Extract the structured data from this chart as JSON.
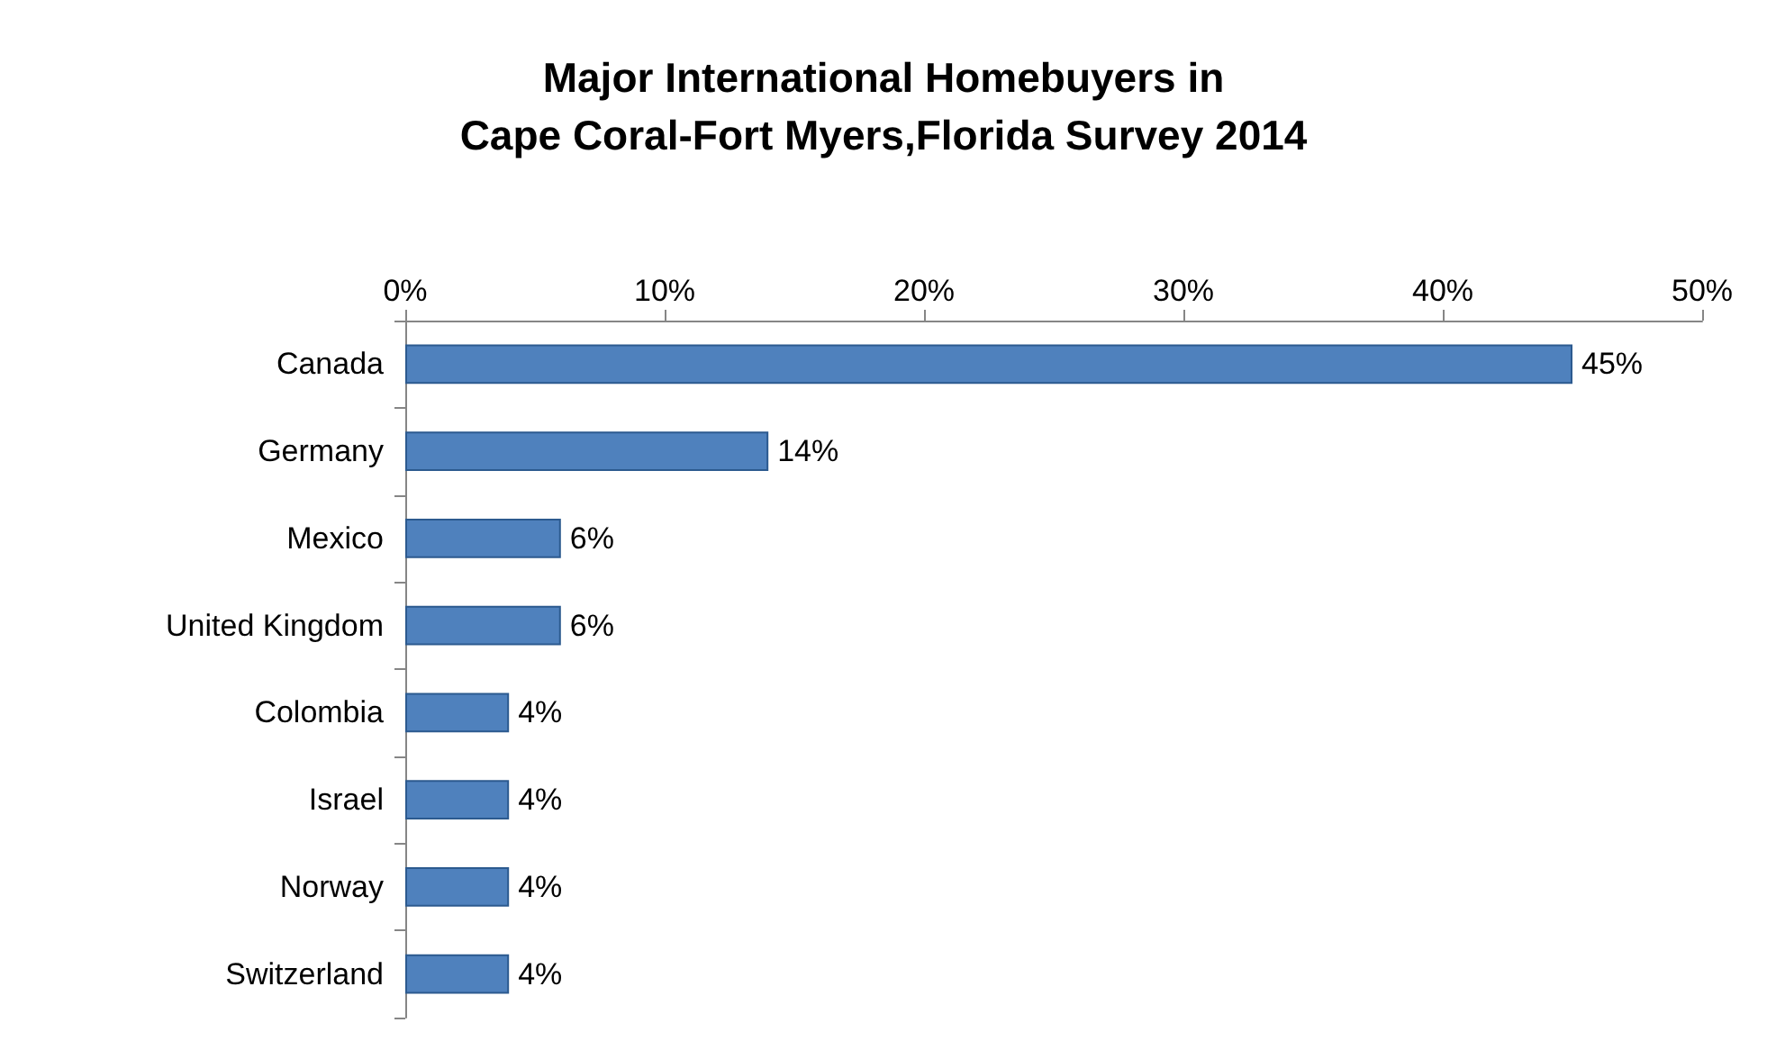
{
  "chart_data": {
    "type": "bar",
    "orientation": "horizontal",
    "title": "Major International Homebuyers in\nCape Coral-Fort Myers,Florida Survey 2014",
    "categories": [
      "Canada",
      "Germany",
      "Mexico",
      "United Kingdom",
      "Colombia",
      "Israel",
      "Norway",
      "Switzerland"
    ],
    "values": [
      45,
      14,
      6,
      6,
      4,
      4,
      4,
      4
    ],
    "value_labels": [
      "45%",
      "14%",
      "6%",
      "6%",
      "4%",
      "4%",
      "4%",
      "4%"
    ],
    "color": "#4f81bd",
    "xlim": [
      0,
      50
    ],
    "xticks": [
      {
        "value": 0,
        "label": "0%"
      },
      {
        "value": 10,
        "label": "10%"
      },
      {
        "value": 20,
        "label": "20%"
      },
      {
        "value": 30,
        "label": "30%"
      },
      {
        "value": 40,
        "label": "40%"
      },
      {
        "value": 50,
        "label": "50%"
      }
    ],
    "grid": false
  }
}
